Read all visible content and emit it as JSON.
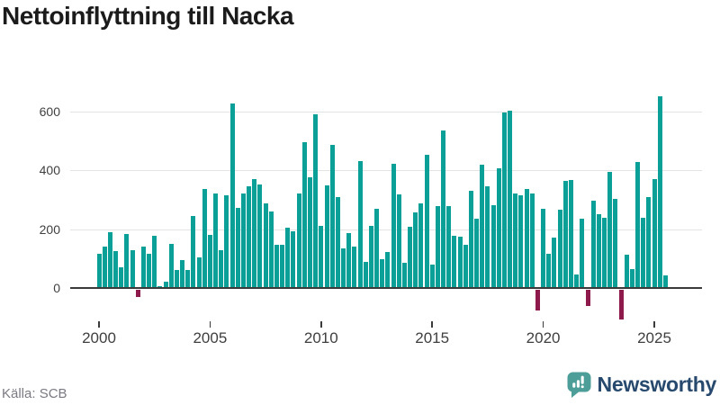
{
  "title": "Nettoinflyttning till Nacka",
  "footer": {
    "source": "Källa: SCB",
    "brand": "Newsworthy"
  },
  "colors": {
    "positive_bar": "#0a9f97",
    "negative_bar": "#8e1a4c",
    "gridline": "#e3e3e3",
    "axis": "#3b3b3b",
    "tick_text": "#3f3f3f",
    "title_text": "#1b1b1b",
    "source_text": "#7a7a82",
    "brand_navy": "#26496d",
    "brand_teal": "#4d9e99"
  },
  "chart_data": {
    "type": "bar",
    "title": "Nettoinflyttning till Nacka",
    "frequency": "quarterly",
    "x_start": "2000-Q1",
    "x_end": "2025-Q3",
    "x_tick_labels": [
      "2000",
      "2005",
      "2010",
      "2015",
      "2020",
      "2025"
    ],
    "x_tick_indices": [
      0,
      20,
      40,
      60,
      80,
      100
    ],
    "y_ticks": [
      0,
      200,
      400,
      600
    ],
    "ylim": [
      -130,
      660
    ],
    "grid": "horizontal",
    "legend": "none",
    "values": [
      115,
      140,
      190,
      125,
      72,
      185,
      130,
      -25,
      140,
      115,
      178,
      5,
      22,
      150,
      62,
      95,
      60,
      245,
      103,
      338,
      180,
      320,
      129,
      316,
      628,
      273,
      320,
      346,
      370,
      351,
      288,
      261,
      148,
      148,
      205,
      192,
      320,
      496,
      378,
      592,
      211,
      350,
      488,
      308,
      136,
      187,
      140,
      432,
      90,
      210,
      270,
      97,
      122,
      422,
      318,
      85,
      208,
      258,
      287,
      452,
      80,
      278,
      535,
      280,
      178,
      175,
      147,
      332,
      235,
      420,
      345,
      283,
      407,
      596,
      604,
      322,
      316,
      336,
      320,
      -73,
      268,
      117,
      172,
      265,
      363,
      367,
      45,
      235,
      -57,
      298,
      252,
      240,
      395,
      302,
      -102,
      112,
      64,
      428,
      240,
      310,
      370,
      652,
      43
    ]
  }
}
